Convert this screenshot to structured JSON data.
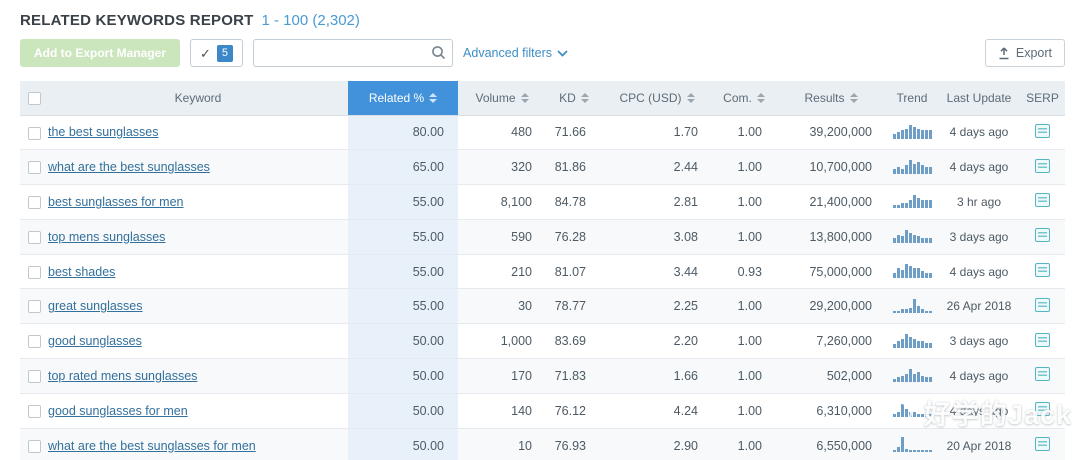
{
  "report": {
    "title": "RELATED KEYWORDS REPORT",
    "range": "1 - 100 (2,302)"
  },
  "toolbar": {
    "export_manager_label": "Add to Export Manager",
    "selected_count": "5",
    "search_placeholder": "",
    "search_value": "",
    "advanced_filters_label": "Advanced filters",
    "export_label": "Export"
  },
  "colors": {
    "accent_blue": "#4192da",
    "related_cell_bg": "#e8f1fa",
    "link_blue": "#33709b",
    "trend_bar": "#6e9dc6",
    "serp_teal": "#56b5c4",
    "export_manager_green": "#cbe5bd"
  },
  "table": {
    "columns": {
      "keyword": "Keyword",
      "related": "Related %",
      "volume": "Volume",
      "kd": "KD",
      "cpc": "CPC (USD)",
      "com": "Com.",
      "results": "Results",
      "trend": "Trend",
      "last_update": "Last Update",
      "serp": "SERP"
    },
    "rows": [
      {
        "keyword": "the best sunglasses",
        "related": "80.00",
        "volume": "480",
        "kd": "71.66",
        "cpc": "1.70",
        "com": "1.00",
        "results": "39,200,000",
        "trend": [
          3,
          4,
          5,
          6,
          8,
          7,
          6,
          5,
          5,
          5
        ],
        "last_update": "4 days ago"
      },
      {
        "keyword": "what are the best sunglasses",
        "related": "65.00",
        "volume": "320",
        "kd": "81.86",
        "cpc": "2.44",
        "com": "1.00",
        "results": "10,700,000",
        "trend": [
          3,
          4,
          3,
          5,
          8,
          6,
          7,
          5,
          4,
          4
        ],
        "last_update": "4 days ago"
      },
      {
        "keyword": "best sunglasses for men",
        "related": "55.00",
        "volume": "8,100",
        "kd": "84.78",
        "cpc": "2.81",
        "com": "1.00",
        "results": "21,400,000",
        "trend": [
          2,
          2,
          3,
          3,
          5,
          8,
          6,
          5,
          5,
          5
        ],
        "last_update": "3 hr ago"
      },
      {
        "keyword": "top mens sunglasses",
        "related": "55.00",
        "volume": "590",
        "kd": "76.28",
        "cpc": "3.08",
        "com": "1.00",
        "results": "13,800,000",
        "trend": [
          3,
          5,
          4,
          8,
          6,
          5,
          4,
          3,
          3,
          3
        ],
        "last_update": "3 days ago"
      },
      {
        "keyword": "best shades",
        "related": "55.00",
        "volume": "210",
        "kd": "81.07",
        "cpc": "3.44",
        "com": "0.93",
        "results": "75,000,000",
        "trend": [
          3,
          6,
          5,
          8,
          7,
          6,
          6,
          4,
          3,
          3
        ],
        "last_update": "4 days ago"
      },
      {
        "keyword": "great sunglasses",
        "related": "55.00",
        "volume": "30",
        "kd": "78.77",
        "cpc": "2.25",
        "com": "1.00",
        "results": "29,200,000",
        "trend": [
          1,
          1,
          2,
          2,
          3,
          8,
          4,
          2,
          1,
          1
        ],
        "last_update": "26 Apr 2018"
      },
      {
        "keyword": "good sunglasses",
        "related": "50.00",
        "volume": "1,000",
        "kd": "83.69",
        "cpc": "2.20",
        "com": "1.00",
        "results": "7,260,000",
        "trend": [
          2,
          4,
          5,
          8,
          6,
          5,
          4,
          4,
          3,
          3
        ],
        "last_update": "3 days ago"
      },
      {
        "keyword": "top rated mens sunglasses",
        "related": "50.00",
        "volume": "170",
        "kd": "71.83",
        "cpc": "1.66",
        "com": "1.00",
        "results": "502,000",
        "trend": [
          2,
          3,
          4,
          5,
          8,
          5,
          6,
          4,
          3,
          3
        ],
        "last_update": "4 days ago"
      },
      {
        "keyword": "good sunglasses for men",
        "related": "50.00",
        "volume": "140",
        "kd": "76.12",
        "cpc": "4.24",
        "com": "1.00",
        "results": "6,310,000",
        "trend": [
          2,
          3,
          8,
          5,
          3,
          3,
          2,
          2,
          2,
          2
        ],
        "last_update": "4 days ago"
      },
      {
        "keyword": "what are the best sunglasses for men",
        "related": "50.00",
        "volume": "10",
        "kd": "76.93",
        "cpc": "2.90",
        "com": "1.00",
        "results": "6,550,000",
        "trend": [
          1,
          3,
          9,
          2,
          1,
          1,
          1,
          1,
          1,
          1
        ],
        "last_update": "20 Apr 2018"
      }
    ]
  },
  "watermark": {
    "text": "好学的Jack"
  }
}
